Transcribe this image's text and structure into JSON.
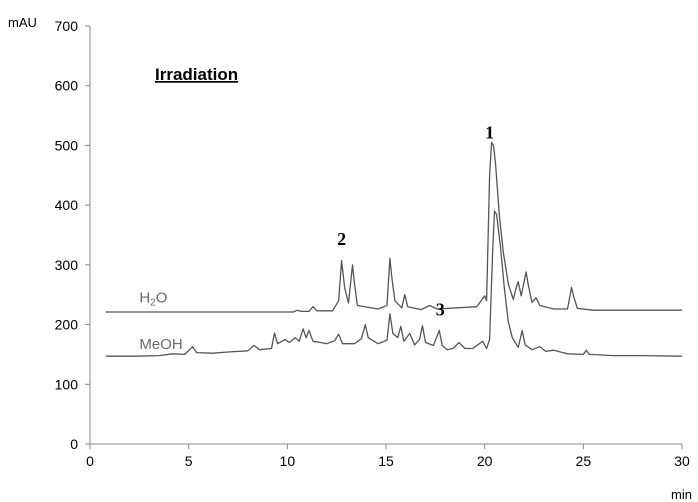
{
  "chart_data": {
    "type": "line",
    "title": "Irradiation",
    "ylabel": "mAU",
    "xlabel": "min",
    "xlim": [
      0,
      30
    ],
    "ylim": [
      0,
      700
    ],
    "xticks": [
      0,
      5,
      10,
      15,
      20,
      25,
      30
    ],
    "yticks": [
      0,
      100,
      200,
      300,
      400,
      500,
      600,
      700
    ],
    "grid": false,
    "series": [
      {
        "name": "H2O",
        "label_main": "H",
        "label_sub": "2",
        "label_tail": "O",
        "color": "#555555",
        "points": [
          [
            0.8,
            221
          ],
          [
            10.3,
            221
          ],
          [
            10.5,
            224
          ],
          [
            10.7,
            222
          ],
          [
            11.1,
            222
          ],
          [
            11.3,
            230
          ],
          [
            11.5,
            223
          ],
          [
            12.3,
            223
          ],
          [
            12.6,
            240
          ],
          [
            12.75,
            307
          ],
          [
            12.9,
            262
          ],
          [
            13.1,
            236
          ],
          [
            13.3,
            300
          ],
          [
            13.4,
            270
          ],
          [
            13.55,
            232
          ],
          [
            14.6,
            226
          ],
          [
            15.05,
            232
          ],
          [
            15.2,
            311
          ],
          [
            15.3,
            278
          ],
          [
            15.45,
            240
          ],
          [
            15.8,
            228
          ],
          [
            15.95,
            250
          ],
          [
            16.1,
            230
          ],
          [
            16.8,
            225
          ],
          [
            17.2,
            232
          ],
          [
            17.6,
            226
          ],
          [
            19.6,
            230
          ],
          [
            20.0,
            248
          ],
          [
            20.1,
            240
          ],
          [
            20.25,
            450
          ],
          [
            20.35,
            505
          ],
          [
            20.45,
            500
          ],
          [
            20.55,
            470
          ],
          [
            20.75,
            380
          ],
          [
            20.95,
            320
          ],
          [
            21.2,
            268
          ],
          [
            21.45,
            242
          ],
          [
            21.6,
            262
          ],
          [
            21.7,
            272
          ],
          [
            21.85,
            248
          ],
          [
            22.0,
            272
          ],
          [
            22.1,
            288
          ],
          [
            22.2,
            268
          ],
          [
            22.4,
            237
          ],
          [
            22.6,
            245
          ],
          [
            22.8,
            232
          ],
          [
            23.5,
            226
          ],
          [
            24.2,
            226
          ],
          [
            24.4,
            262
          ],
          [
            24.5,
            248
          ],
          [
            24.7,
            227
          ],
          [
            25.5,
            224
          ],
          [
            30.0,
            224
          ]
        ]
      },
      {
        "name": "MeOH",
        "label_main": "MeOH",
        "label_sub": "",
        "label_tail": "",
        "color": "#555555",
        "points": [
          [
            0.8,
            147
          ],
          [
            2.2,
            147
          ],
          [
            3.5,
            148
          ],
          [
            4.2,
            151
          ],
          [
            4.8,
            150
          ],
          [
            5.2,
            163
          ],
          [
            5.4,
            153
          ],
          [
            6.2,
            152
          ],
          [
            7.0,
            154
          ],
          [
            8.0,
            156
          ],
          [
            8.3,
            165
          ],
          [
            8.6,
            158
          ],
          [
            9.2,
            160
          ],
          [
            9.35,
            186
          ],
          [
            9.5,
            168
          ],
          [
            9.9,
            175
          ],
          [
            10.1,
            170
          ],
          [
            10.4,
            178
          ],
          [
            10.6,
            172
          ],
          [
            10.8,
            193
          ],
          [
            10.95,
            178
          ],
          [
            11.1,
            190
          ],
          [
            11.3,
            172
          ],
          [
            11.7,
            170
          ],
          [
            12.0,
            168
          ],
          [
            12.4,
            173
          ],
          [
            12.6,
            184
          ],
          [
            12.8,
            168
          ],
          [
            13.4,
            168
          ],
          [
            13.75,
            176
          ],
          [
            13.95,
            200
          ],
          [
            14.1,
            178
          ],
          [
            14.6,
            168
          ],
          [
            15.05,
            174
          ],
          [
            15.2,
            218
          ],
          [
            15.35,
            185
          ],
          [
            15.6,
            178
          ],
          [
            15.75,
            197
          ],
          [
            15.9,
            172
          ],
          [
            16.2,
            185
          ],
          [
            16.45,
            166
          ],
          [
            16.7,
            175
          ],
          [
            16.85,
            198
          ],
          [
            17.0,
            170
          ],
          [
            17.4,
            165
          ],
          [
            17.7,
            190
          ],
          [
            17.85,
            165
          ],
          [
            18.1,
            158
          ],
          [
            18.4,
            160
          ],
          [
            18.7,
            170
          ],
          [
            19.0,
            160
          ],
          [
            19.4,
            160
          ],
          [
            19.9,
            172
          ],
          [
            20.1,
            160
          ],
          [
            20.25,
            175
          ],
          [
            20.4,
            320
          ],
          [
            20.5,
            390
          ],
          [
            20.6,
            385
          ],
          [
            20.8,
            330
          ],
          [
            21.0,
            260
          ],
          [
            21.2,
            205
          ],
          [
            21.4,
            178
          ],
          [
            21.7,
            162
          ],
          [
            21.9,
            190
          ],
          [
            22.05,
            166
          ],
          [
            22.4,
            158
          ],
          [
            22.8,
            163
          ],
          [
            23.1,
            155
          ],
          [
            23.5,
            157
          ],
          [
            24.2,
            151
          ],
          [
            25.0,
            150
          ],
          [
            25.15,
            157
          ],
          [
            25.3,
            150
          ],
          [
            26.5,
            148
          ],
          [
            28.0,
            148
          ],
          [
            30.0,
            147
          ]
        ]
      }
    ],
    "annotations": [
      {
        "text": "1",
        "x": 20.25,
        "y": 512
      },
      {
        "text": "2",
        "x": 12.75,
        "y": 333
      },
      {
        "text": "3",
        "x": 17.75,
        "y": 215
      }
    ],
    "series_labels": [
      {
        "series": 0,
        "x": 2.5,
        "y": 237
      },
      {
        "series": 1,
        "x": 2.5,
        "y": 159
      }
    ]
  }
}
